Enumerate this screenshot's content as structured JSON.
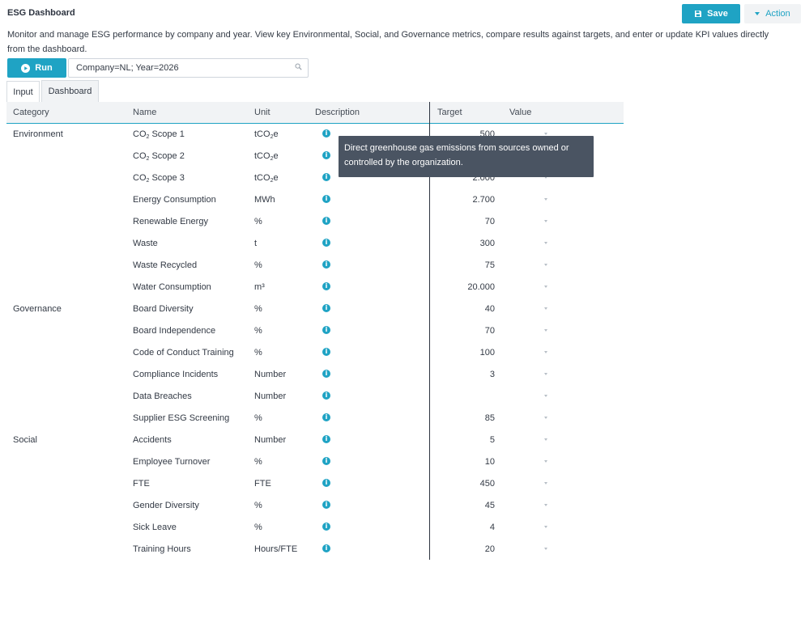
{
  "header": {
    "title": "ESG Dashboard",
    "save_label": "Save",
    "action_label": "Action"
  },
  "description": "Monitor and manage ESG performance by company and year. View key Environmental, Social, and Governance metrics, compare results against targets, and enter or update KPI values directly from the dashboard.",
  "toolbar": {
    "run_label": "Run",
    "filter_value": "Company=NL; Year=2026"
  },
  "tabs": [
    {
      "label": "Input",
      "active": true
    },
    {
      "label": "Dashboard",
      "active": false
    }
  ],
  "grid": {
    "columns": {
      "category": "Category",
      "name": "Name",
      "unit": "Unit",
      "description": "Description",
      "target": "Target",
      "value": "Value"
    },
    "rows": [
      {
        "category": "Environment",
        "name_main": "CO",
        "name_sub": "2",
        "name_rest": " Scope 1",
        "unit_main": "tCO",
        "unit_sub": "2",
        "unit_rest": "e",
        "target": "500"
      },
      {
        "category": "",
        "name_main": "CO",
        "name_sub": "2",
        "name_rest": " Scope 2",
        "unit_main": "tCO",
        "unit_sub": "2",
        "unit_rest": "e",
        "target": ""
      },
      {
        "category": "",
        "name_main": "CO",
        "name_sub": "2",
        "name_rest": " Scope 3",
        "unit_main": "tCO",
        "unit_sub": "2",
        "unit_rest": "e",
        "target": "2.000"
      },
      {
        "category": "",
        "name_main": "Energy Consumption",
        "name_sub": "",
        "name_rest": "",
        "unit_main": "MWh",
        "unit_sub": "",
        "unit_rest": "",
        "target": "2.700"
      },
      {
        "category": "",
        "name_main": "Renewable Energy",
        "name_sub": "",
        "name_rest": "",
        "unit_main": "%",
        "unit_sub": "",
        "unit_rest": "",
        "target": "70"
      },
      {
        "category": "",
        "name_main": "Waste",
        "name_sub": "",
        "name_rest": "",
        "unit_main": "t",
        "unit_sub": "",
        "unit_rest": "",
        "target": "300"
      },
      {
        "category": "",
        "name_main": "Waste Recycled",
        "name_sub": "",
        "name_rest": "",
        "unit_main": "%",
        "unit_sub": "",
        "unit_rest": "",
        "target": "75"
      },
      {
        "category": "",
        "name_main": "Water Consumption",
        "name_sub": "",
        "name_rest": "",
        "unit_main": "m³",
        "unit_sub": "",
        "unit_rest": "",
        "target": "20.000"
      },
      {
        "category": "Governance",
        "name_main": "Board Diversity",
        "name_sub": "",
        "name_rest": "",
        "unit_main": "%",
        "unit_sub": "",
        "unit_rest": "",
        "target": "40"
      },
      {
        "category": "",
        "name_main": "Board Independence",
        "name_sub": "",
        "name_rest": "",
        "unit_main": "%",
        "unit_sub": "",
        "unit_rest": "",
        "target": "70"
      },
      {
        "category": "",
        "name_main": "Code of Conduct Training",
        "name_sub": "",
        "name_rest": "",
        "unit_main": "%",
        "unit_sub": "",
        "unit_rest": "",
        "target": "100"
      },
      {
        "category": "",
        "name_main": "Compliance Incidents",
        "name_sub": "",
        "name_rest": "",
        "unit_main": "Number",
        "unit_sub": "",
        "unit_rest": "",
        "target": "3"
      },
      {
        "category": "",
        "name_main": "Data Breaches",
        "name_sub": "",
        "name_rest": "",
        "unit_main": "Number",
        "unit_sub": "",
        "unit_rest": "",
        "target": ""
      },
      {
        "category": "",
        "name_main": "Supplier ESG Screening",
        "name_sub": "",
        "name_rest": "",
        "unit_main": "%",
        "unit_sub": "",
        "unit_rest": "",
        "target": "85"
      },
      {
        "category": "Social",
        "name_main": "Accidents",
        "name_sub": "",
        "name_rest": "",
        "unit_main": "Number",
        "unit_sub": "",
        "unit_rest": "",
        "target": "5"
      },
      {
        "category": "",
        "name_main": "Employee Turnover",
        "name_sub": "",
        "name_rest": "",
        "unit_main": "%",
        "unit_sub": "",
        "unit_rest": "",
        "target": "10"
      },
      {
        "category": "",
        "name_main": "FTE",
        "name_sub": "",
        "name_rest": "",
        "unit_main": "FTE",
        "unit_sub": "",
        "unit_rest": "",
        "target": "450"
      },
      {
        "category": "",
        "name_main": "Gender Diversity",
        "name_sub": "",
        "name_rest": "",
        "unit_main": "%",
        "unit_sub": "",
        "unit_rest": "",
        "target": "45"
      },
      {
        "category": "",
        "name_main": "Sick Leave",
        "name_sub": "",
        "name_rest": "",
        "unit_main": "%",
        "unit_sub": "",
        "unit_rest": "",
        "target": "4"
      },
      {
        "category": "",
        "name_main": "Training Hours",
        "name_sub": "",
        "name_rest": "",
        "unit_main": "Hours/FTE",
        "unit_sub": "",
        "unit_rest": "",
        "target": "20"
      }
    ],
    "info_glyph": "i"
  },
  "tooltip": {
    "text": "Direct greenhouse gas emissions from sources owned or controlled by the organization."
  },
  "colors": {
    "accent": "#1fa3c4",
    "tooltip_bg": "#4a5462",
    "header_bg": "#f1f3f5"
  },
  "icons": {
    "save": "floppy-disk-icon",
    "action": "caret-down-icon",
    "run": "play-circle-icon",
    "search": "magnifier-icon",
    "info": "info-circle-icon",
    "value_dropdown": "caret-down-icon"
  }
}
